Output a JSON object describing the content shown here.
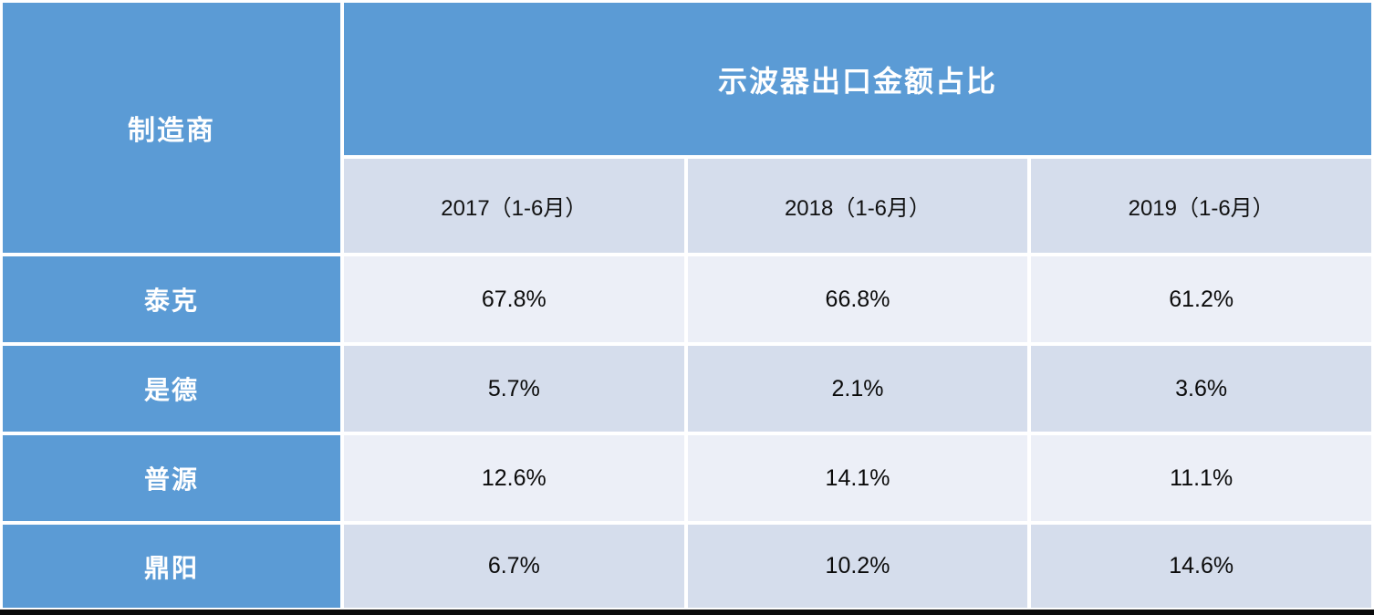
{
  "chart_data": {
    "type": "table",
    "title": "示波器出口金额占比",
    "row_header": "制造商",
    "columns": [
      "2017（1-6月）",
      "2018（1-6月）",
      "2019（1-6月）"
    ],
    "rows": [
      {
        "label": "泰克",
        "values": [
          "67.8%",
          "66.8%",
          "61.2%"
        ]
      },
      {
        "label": "是德",
        "values": [
          "5.7%",
          "2.1%",
          "3.6%"
        ]
      },
      {
        "label": "普源",
        "values": [
          "12.6%",
          "14.1%",
          "11.1%"
        ]
      },
      {
        "label": "鼎阳",
        "values": [
          "6.7%",
          "10.2%",
          "14.6%"
        ]
      }
    ]
  },
  "colors": {
    "header_blue": "#5B9BD5",
    "band_light": "#ECEFF7",
    "band_medium": "#D5DDEC",
    "grid_gap_white": "#FFFFFF",
    "bottom_border_black": "#0A0A0A",
    "text_on_blue": "#FFFFFF",
    "text_dark": "#0B0B0B"
  }
}
